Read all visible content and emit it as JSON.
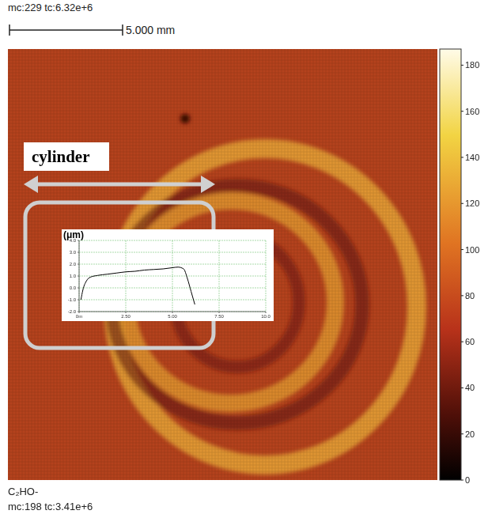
{
  "header": {
    "counts": "mc:229 tc:6.32e+6",
    "scale_bar": "5.000 mm"
  },
  "footer": {
    "species": "C₂HO-",
    "counts": "mc:198 tc:3.41e+6"
  },
  "annotation": "cylinder",
  "colorbar": {
    "range": [
      0,
      187
    ],
    "ticks": [
      0,
      20,
      40,
      60,
      80,
      100,
      120,
      140,
      160,
      180
    ]
  },
  "chart_data": {
    "type": "line",
    "ylabel": "(μm)",
    "x": [
      0.1,
      0.2,
      0.4,
      0.6,
      1.0,
      1.5,
      2.0,
      2.5,
      3.0,
      3.5,
      4.0,
      4.5,
      5.0,
      5.3,
      5.6,
      5.8,
      6.0,
      6.2
    ],
    "values": [
      -1.0,
      -0.2,
      0.6,
      0.9,
      1.05,
      1.15,
      1.25,
      1.35,
      1.4,
      1.5,
      1.55,
      1.6,
      1.7,
      1.75,
      1.6,
      0.8,
      -0.3,
      -1.4
    ],
    "color": "#000000",
    "xlim": [
      0,
      10
    ],
    "xticks": [
      {
        "value": 0,
        "label": "0m"
      },
      {
        "value": 2.5,
        "label": "2.50"
      },
      {
        "value": 5,
        "label": "5.00"
      },
      {
        "value": 7.5,
        "label": "7.50"
      },
      {
        "value": 10,
        "label": "10.0"
      }
    ],
    "ylim": [
      -2,
      4
    ],
    "yticks": [
      {
        "value": -2,
        "label": "-2.0"
      },
      {
        "value": -1,
        "label": "-1.0"
      },
      {
        "value": 0,
        "label": "0.0"
      },
      {
        "value": 1,
        "label": "1.0"
      },
      {
        "value": 2,
        "label": "2.0"
      },
      {
        "value": 3,
        "label": "3.0"
      },
      {
        "value": 4,
        "label": "4.0"
      }
    ],
    "grid": true
  }
}
